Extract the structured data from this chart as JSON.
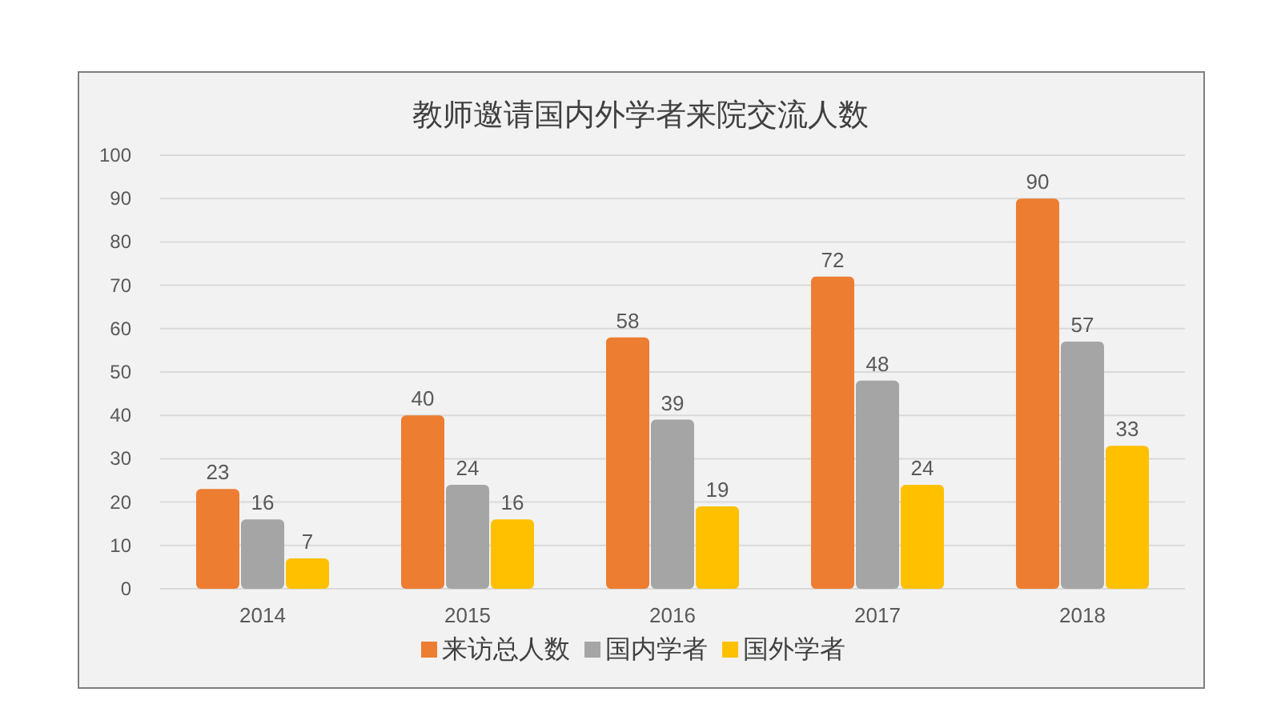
{
  "chart_data": {
    "type": "bar",
    "title": "教师邀请国内外学者来院交流人数",
    "categories": [
      "2014",
      "2015",
      "2016",
      "2017",
      "2018"
    ],
    "series": [
      {
        "name": "来访总人数",
        "color": "#ed7d31",
        "values": [
          23,
          40,
          58,
          72,
          90
        ]
      },
      {
        "name": "国内学者",
        "color": "#a5a5a5",
        "values": [
          16,
          24,
          39,
          48,
          57
        ]
      },
      {
        "name": "国外学者",
        "color": "#ffc000",
        "values": [
          7,
          16,
          19,
          24,
          33
        ]
      }
    ],
    "ylim": [
      0,
      100
    ],
    "yticks": [
      0,
      10,
      20,
      30,
      40,
      50,
      60,
      70,
      80,
      90,
      100
    ],
    "grid": "y",
    "legend": "bottom",
    "data_labels": true
  }
}
